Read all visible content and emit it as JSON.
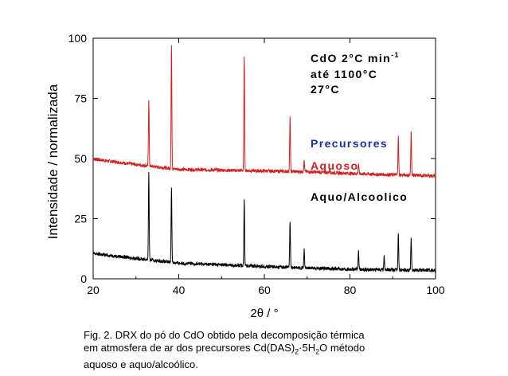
{
  "chart_data": {
    "type": "line",
    "xlabel": "2θ / °",
    "ylabel": "Intensidade / normalizada",
    "xlim": [
      20,
      100
    ],
    "ylim": [
      0,
      100
    ],
    "x_ticks": [
      20,
      40,
      60,
      80,
      100
    ],
    "y_ticks": [
      0,
      25,
      50,
      75,
      100
    ],
    "grid": false,
    "annotation_lines": [
      "CdO 2°C min",
      "até 1100°C",
      "27°C"
    ],
    "annotation_superscript": "-1",
    "legend_header": "Precursores",
    "legend_header_color": "#1c2fa8",
    "series": [
      {
        "name": "Aquoso",
        "color": "#d22020",
        "baseline": [
          [
            20,
            49.8
          ],
          [
            30,
            47.5
          ],
          [
            40,
            45.5
          ],
          [
            55,
            45
          ],
          [
            70,
            44.5
          ],
          [
            85,
            43.5
          ],
          [
            100,
            42.8
          ]
        ],
        "peaks": [
          [
            33.0,
            74.7
          ],
          [
            38.3,
            97.7
          ],
          [
            55.3,
            93
          ],
          [
            66.0,
            66.8
          ],
          [
            69.3,
            49.3
          ],
          [
            75.3,
            45.8
          ],
          [
            82.0,
            48
          ],
          [
            91.3,
            59
          ],
          [
            94.3,
            61.2
          ]
        ]
      },
      {
        "name": "Aquo/Alcoolico",
        "color": "#000000",
        "baseline": [
          [
            20,
            10.5
          ],
          [
            30,
            8.5
          ],
          [
            40,
            6.5
          ],
          [
            55,
            5.5
          ],
          [
            70,
            4.5
          ],
          [
            85,
            3.8
          ],
          [
            100,
            3.5
          ]
        ],
        "peaks": [
          [
            33.0,
            44
          ],
          [
            38.3,
            38.5
          ],
          [
            55.3,
            33.7
          ],
          [
            66.0,
            24
          ],
          [
            69.3,
            12
          ],
          [
            82.0,
            11.5
          ],
          [
            88.0,
            9.5
          ],
          [
            91.3,
            19
          ],
          [
            94.3,
            17.2
          ]
        ]
      }
    ]
  },
  "caption": {
    "line1": "Fig. 2. DRX do pó do CdO obtido pela decomposição térmica",
    "line2_pre": "em atmosfera de ar dos precursores Cd(DAS)",
    "line2_sub1": "2",
    "line2_mid": "·5H",
    "line2_sub2": "2",
    "line2_post": "O método",
    "line3": "aquoso e aquo/alcoólico."
  }
}
